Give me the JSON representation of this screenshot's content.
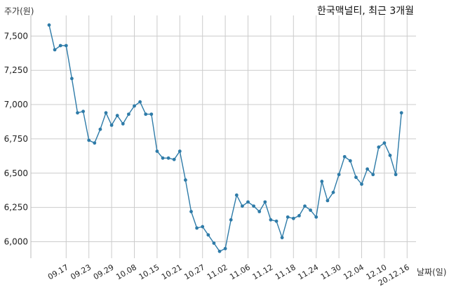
{
  "chart_data": {
    "type": "line",
    "title": "한국맥널티, 최근 3개월",
    "ylabel": "주가(원)",
    "xlabel": "날짜(일)",
    "ylim": [
      5880,
      7650
    ],
    "yticks": [
      6000,
      6250,
      6500,
      6750,
      7000,
      7250,
      7500
    ],
    "ytick_labels": [
      "6,000",
      "6,250",
      "6,500",
      "6,750",
      "7,000",
      "7,250",
      "7,500"
    ],
    "xtick_index": [
      3,
      7,
      11,
      15,
      19,
      23,
      27,
      31,
      35,
      39,
      43,
      47,
      51,
      55,
      59,
      63
    ],
    "xtick_labels": [
      "09.17",
      "09.23",
      "09.29",
      "10.08",
      "10.15",
      "10.21",
      "10.27",
      "11.02",
      "11.06",
      "11.12",
      "11.18",
      "11.24",
      "11.30",
      "12.04",
      "12.10",
      "20.12.16"
    ],
    "grid": true,
    "series": [
      {
        "color": "#2e7ba8",
        "values": [
          7580,
          7400,
          7430,
          7430,
          7190,
          6940,
          6950,
          6740,
          6720,
          6820,
          6940,
          6850,
          6920,
          6860,
          6930,
          6990,
          7020,
          6930,
          6930,
          6660,
          6610,
          6610,
          6600,
          6660,
          6450,
          6220,
          6100,
          6110,
          6050,
          5990,
          5930,
          5950,
          6160,
          6340,
          6260,
          6290,
          6260,
          6220,
          6290,
          6160,
          6150,
          6030,
          6180,
          6170,
          6190,
          6260,
          6230,
          6180,
          6440,
          6300,
          6360,
          6490,
          6620,
          6590,
          6470,
          6420,
          6530,
          6490,
          6690,
          6720,
          6630,
          6490,
          6940
        ]
      }
    ]
  }
}
